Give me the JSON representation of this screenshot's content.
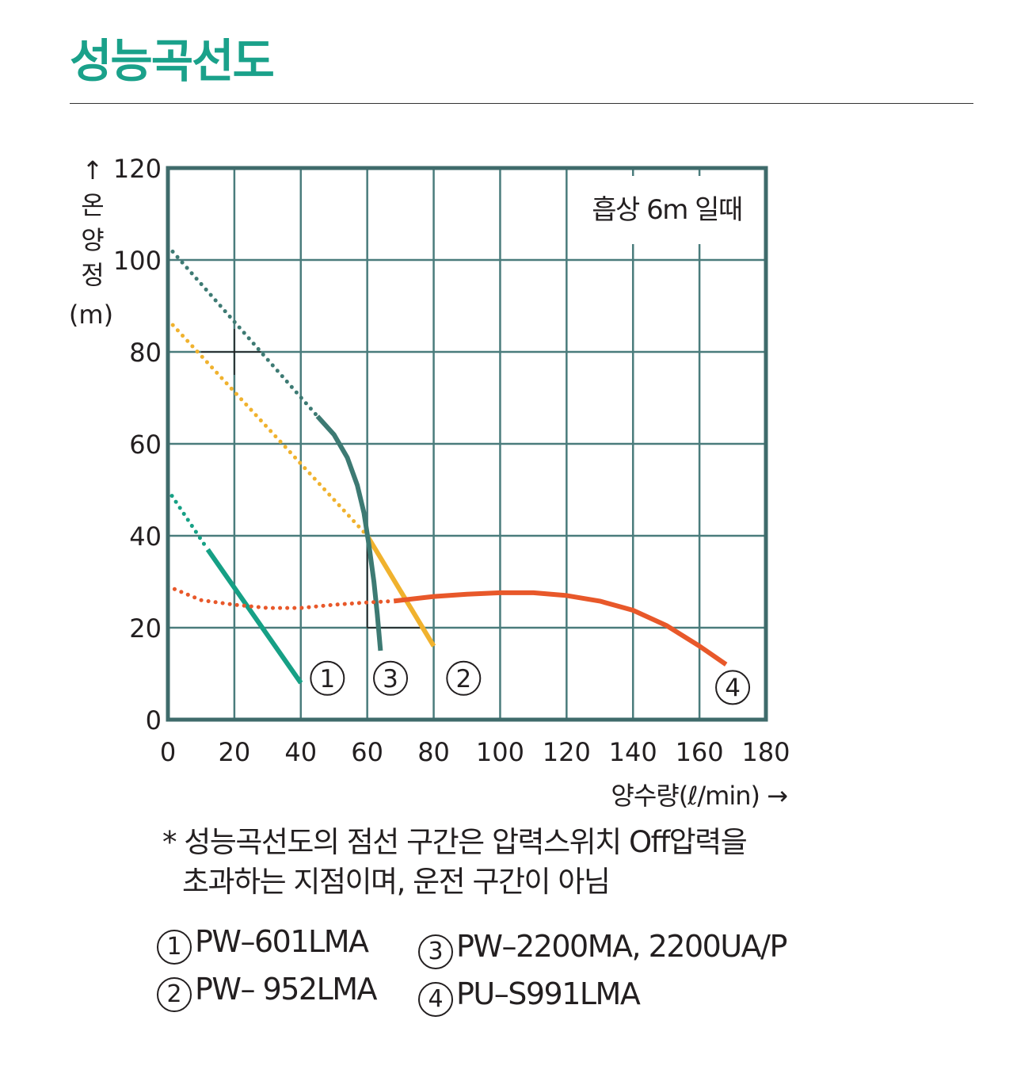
{
  "page": {
    "title": "성능곡선도"
  },
  "chart_data": {
    "type": "line",
    "annotation": "흡상 6m 일때",
    "ylabel": {
      "arrow": "↑",
      "text": "온양정",
      "unit": "(m)"
    },
    "xlabel": "양수량(ℓ/min) →",
    "xlim": [
      0,
      180
    ],
    "ylim": [
      0,
      120
    ],
    "xticks": [
      "0",
      "20",
      "40",
      "60",
      "80",
      "100",
      "120",
      "140",
      "160",
      "180"
    ],
    "yticks": [
      "0",
      "20",
      "40",
      "60",
      "80",
      "100",
      "120"
    ],
    "grid": true,
    "colors": {
      "frame": "#3f6b6b",
      "grid": "#4a7c7c"
    },
    "series": [
      {
        "marker": "1",
        "color": "#16a085",
        "dotted": [
          [
            0,
            50
          ],
          [
            12,
            37
          ]
        ],
        "solid": [
          [
            12,
            37
          ],
          [
            40,
            8
          ]
        ],
        "label_at": [
          48,
          9
        ]
      },
      {
        "marker": "2",
        "color": "#f0b22e",
        "dotted": [
          [
            0,
            87
          ],
          [
            60,
            40
          ]
        ],
        "solid": [
          [
            60,
            40
          ],
          [
            80,
            16
          ]
        ],
        "label_at": [
          89,
          9
        ]
      },
      {
        "marker": "3",
        "color": "#3d7a73",
        "dotted": [
          [
            0,
            103
          ],
          [
            45,
            66
          ]
        ],
        "solid": [
          [
            45,
            66
          ],
          [
            50,
            62
          ],
          [
            54,
            57
          ],
          [
            57,
            51
          ],
          [
            59,
            45
          ],
          [
            60.5,
            38
          ],
          [
            62,
            30
          ],
          [
            63,
            23
          ],
          [
            64,
            15
          ]
        ],
        "label_at": [
          67,
          9
        ]
      },
      {
        "marker": "4",
        "color": "#e8582a",
        "dotted": [
          [
            0,
            29
          ],
          [
            10,
            26
          ],
          [
            20,
            25
          ],
          [
            30,
            24.3
          ],
          [
            40,
            24.3
          ],
          [
            50,
            25
          ],
          [
            60,
            25.5
          ],
          [
            68,
            25.8
          ]
        ],
        "solid": [
          [
            68,
            25.8
          ],
          [
            80,
            26.8
          ],
          [
            90,
            27.3
          ],
          [
            100,
            27.6
          ],
          [
            110,
            27.6
          ],
          [
            120,
            27
          ],
          [
            130,
            25.8
          ],
          [
            140,
            23.8
          ],
          [
            150,
            20.5
          ],
          [
            160,
            16
          ],
          [
            168,
            12
          ]
        ],
        "label_at": [
          170,
          7
        ]
      }
    ],
    "reference_lines": [
      {
        "x": [
          20,
          20
        ],
        "y": [
          75,
          85
        ]
      },
      {
        "x": [
          10,
          28
        ],
        "y": [
          80,
          80
        ]
      },
      {
        "x": [
          60,
          60
        ],
        "y": [
          20,
          38
        ]
      },
      {
        "x": [
          60,
          76
        ],
        "y": [
          20,
          20
        ]
      }
    ]
  },
  "note": {
    "line1": "* 성능곡선도의 점선 구간은 압력스위치 Off압력을",
    "line2": "초과하는 지점이며, 운전 구간이 아님"
  },
  "legend": [
    {
      "num": "1",
      "label": "PW–601LMA"
    },
    {
      "num": "2",
      "label": "PW– 952LMA"
    },
    {
      "num": "3",
      "label": "PW–2200MA, 2200UA/P"
    },
    {
      "num": "4",
      "label": "PU–S991LMA"
    }
  ]
}
